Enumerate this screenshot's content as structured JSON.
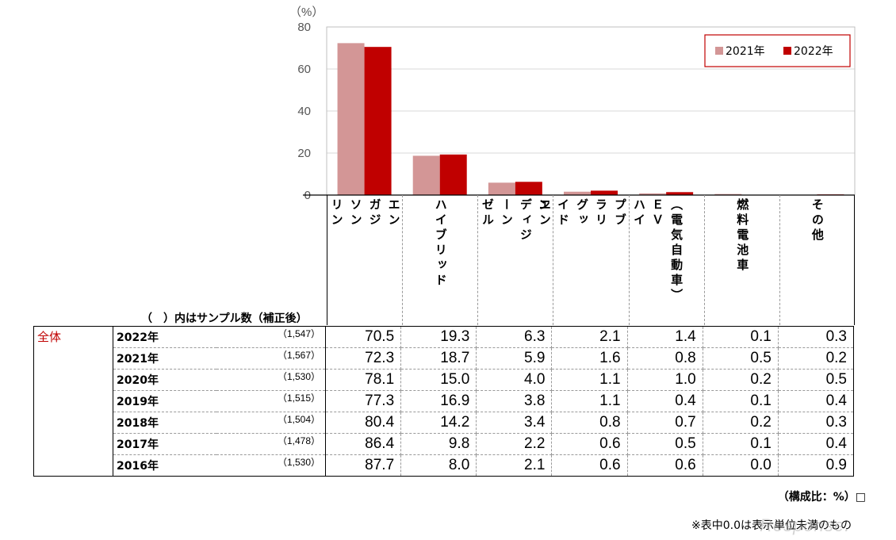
{
  "chart_data": {
    "type": "bar",
    "unit_label": "（%）",
    "ylim": [
      0,
      80
    ],
    "yticks": [
      0,
      20,
      40,
      60,
      80
    ],
    "grid": true,
    "legend_position": "top-right",
    "categories": [
      [
        "エン",
        "ガジ",
        "ソン",
        "リン"
      ],
      [
        "ハイブリッド"
      ],
      [
        "エン",
        "ディジ",
        "ーン",
        "ゼル"
      ],
      [
        "ハイ",
        "プブ",
        "ラリ",
        "グッ",
        "イド",
        "ン"
      ],
      [
        "（電気自動車）",
        "ＥＶ"
      ],
      [
        "燃料電池車"
      ],
      [
        "その他"
      ]
    ],
    "series": [
      {
        "name": "2021年",
        "color": "#d39696",
        "values": [
          72.3,
          18.7,
          5.9,
          1.6,
          0.8,
          0.5,
          0.2
        ]
      },
      {
        "name": "2022年",
        "color": "#c00000",
        "values": [
          70.5,
          19.3,
          6.3,
          2.1,
          1.4,
          0.1,
          0.3
        ]
      }
    ]
  },
  "table": {
    "sample_caption": "（　）内はサンプル数（補正後）",
    "group_label": "全体",
    "rows": [
      {
        "year": "2022年",
        "n": "（1,547）",
        "values": [
          "70.5",
          "19.3",
          "6.3",
          "2.1",
          "1.4",
          "0.1",
          "0.3"
        ]
      },
      {
        "year": "2021年",
        "n": "（1,567）",
        "values": [
          "72.3",
          "18.7",
          "5.9",
          "1.6",
          "0.8",
          "0.5",
          "0.2"
        ]
      },
      {
        "year": "2020年",
        "n": "（1,530）",
        "values": [
          "78.1",
          "15.0",
          "4.0",
          "1.1",
          "1.0",
          "0.2",
          "0.5"
        ]
      },
      {
        "year": "2019年",
        "n": "（1,515）",
        "values": [
          "77.3",
          "16.9",
          "3.8",
          "1.1",
          "0.4",
          "0.1",
          "0.4"
        ]
      },
      {
        "year": "2018年",
        "n": "（1,504）",
        "values": [
          "80.4",
          "14.2",
          "3.4",
          "0.8",
          "0.7",
          "0.2",
          "0.3"
        ]
      },
      {
        "year": "2017年",
        "n": "（1,478）",
        "values": [
          "86.4",
          "9.8",
          "2.2",
          "0.6",
          "0.5",
          "0.1",
          "0.4"
        ]
      },
      {
        "year": "2016年",
        "n": "（1,530）",
        "values": [
          "87.7",
          "8.0",
          "2.1",
          "0.6",
          "0.6",
          "0.0",
          "0.9"
        ]
      }
    ]
  },
  "notes": {
    "unit": "（構成比：%）□",
    "footnote": "※表中0.0は表示単位未満のもの"
  },
  "watermark": "Response."
}
